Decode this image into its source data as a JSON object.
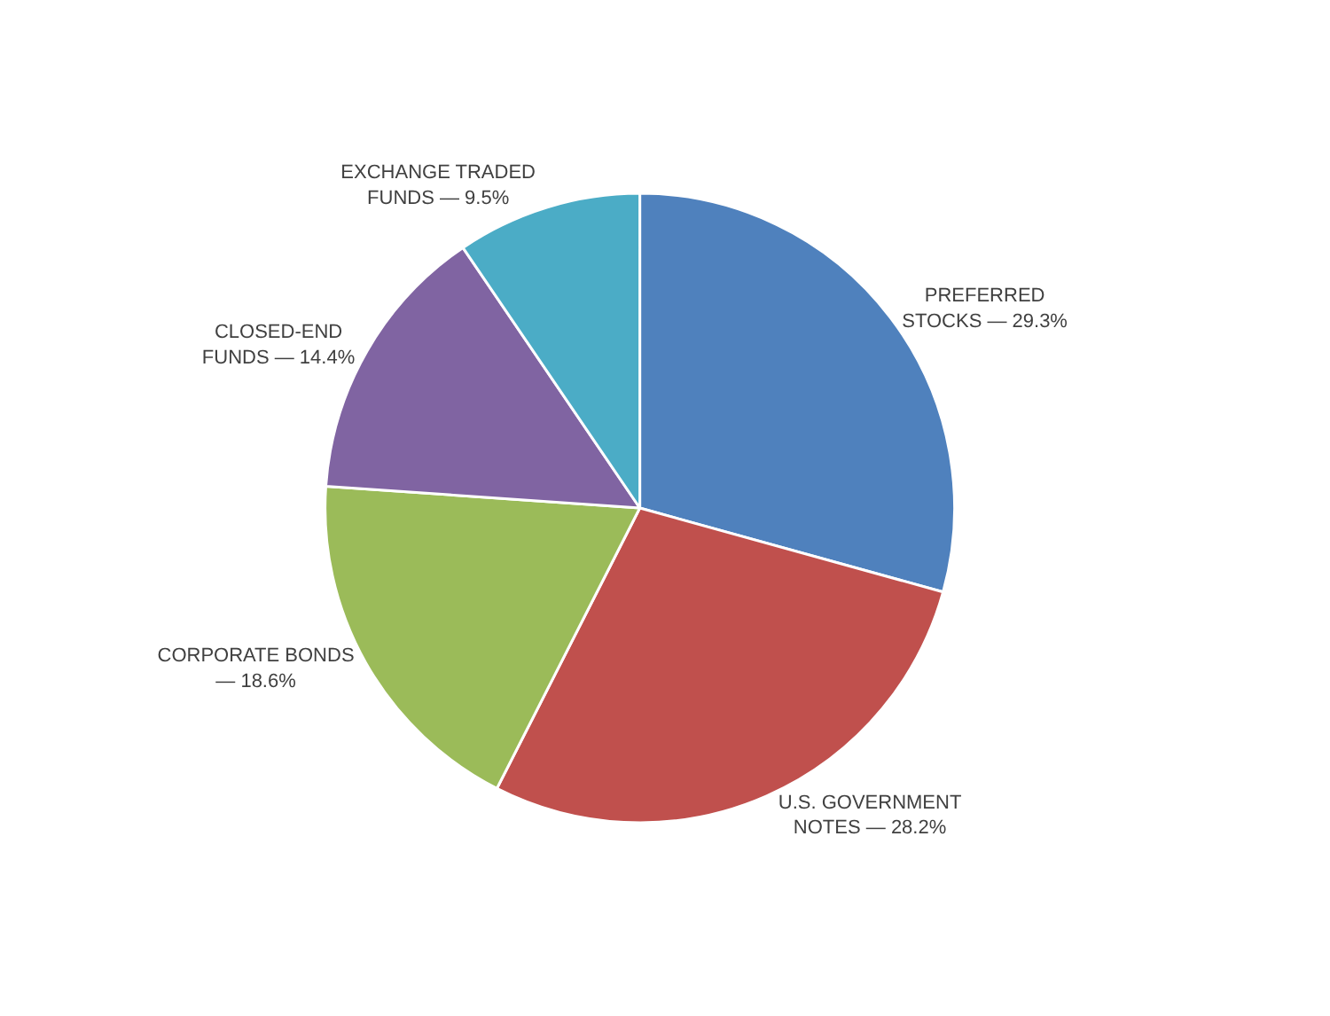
{
  "chart_data": {
    "type": "pie",
    "categories": [
      "PREFERRED STOCKS — 29.3%",
      "U.S. GOVERNMENT NOTES — 28.2%",
      "CORPORATE BONDS — 18.6%",
      "CLOSED-END FUNDS — 14.4%",
      "EXCHANGE TRADED FUNDS — 9.5%"
    ],
    "values": [
      29.3,
      28.2,
      18.6,
      14.4,
      9.5
    ],
    "colors": [
      "#4f81bd",
      "#c0504d",
      "#9bbb59",
      "#8064a2",
      "#4bacc6"
    ]
  }
}
